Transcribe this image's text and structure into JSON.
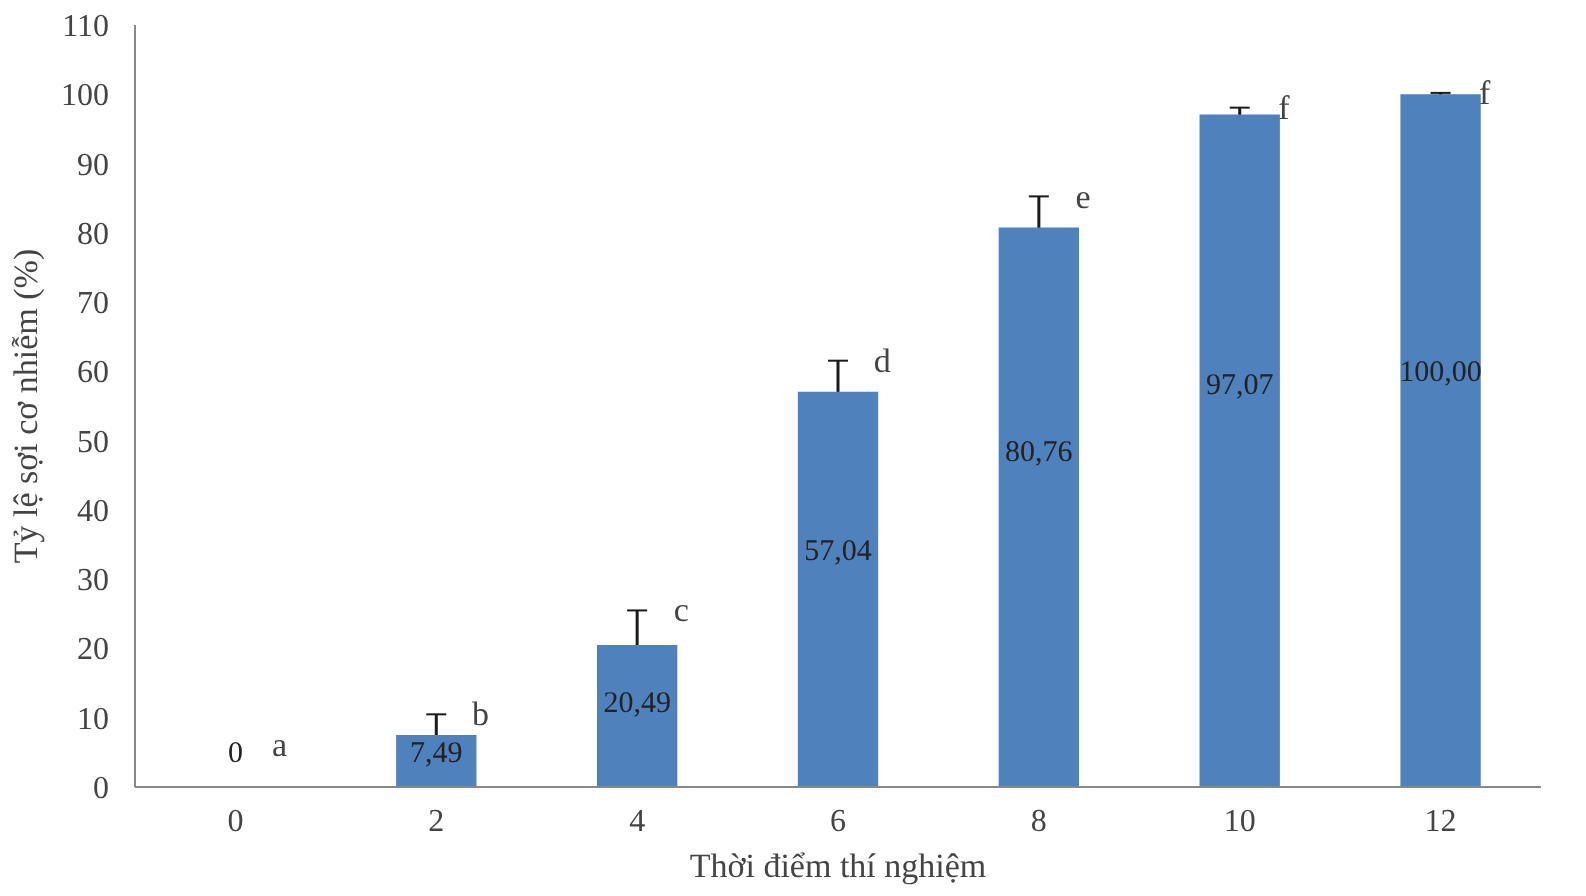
{
  "chart_data": {
    "type": "bar",
    "xlabel": "Thời điểm thí nghiệm",
    "ylabel": "Tỷ lệ sợi cơ nhiễm (%)",
    "categories": [
      "0",
      "2",
      "4",
      "6",
      "8",
      "10",
      "12"
    ],
    "values": [
      0,
      7.49,
      20.49,
      57.04,
      80.76,
      97.07,
      100.0
    ],
    "value_labels": [
      "0",
      "7,49",
      "20,49",
      "57,04",
      "80,76",
      "97,07",
      "100,00"
    ],
    "errors": [
      null,
      3,
      5,
      4.5,
      4.5,
      1,
      0.2
    ],
    "color": "#4f81bd",
    "ylim": [
      0,
      110
    ],
    "yticks": [
      0,
      10,
      20,
      30,
      40,
      50,
      60,
      70,
      80,
      90,
      100,
      110
    ],
    "grid": false,
    "annotations": [
      "a",
      "b",
      "c",
      "d",
      "e",
      "f",
      "f"
    ]
  }
}
